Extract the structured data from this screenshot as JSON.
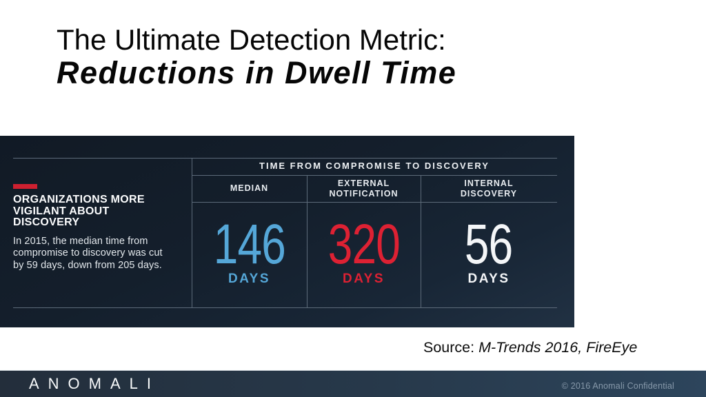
{
  "slide": {
    "title_line1": "The Ultimate Detection Metric:",
    "title_line2": "Reductions in Dwell Time",
    "source_prefix": "Source: ",
    "source_citation": "M-Trends 2016, FireEye"
  },
  "infographic": {
    "left_panel": {
      "heading_lines": [
        "ORGANIZATIONS MORE",
        "VIGILANT ABOUT",
        "DISCOVERY"
      ],
      "body_lines": [
        "In 2015, the median time from",
        "compromise to discovery was cut",
        "by 59 days, down from 205 days."
      ]
    },
    "table": {
      "title": "TIME FROM COMPROMISE TO DISCOVERY",
      "columns": [
        {
          "header_lines": [
            "MEDIAN"
          ],
          "value": "146",
          "unit": "DAYS",
          "color": "#55a7d8"
        },
        {
          "header_lines": [
            "EXTERNAL",
            "NOTIFICATION"
          ],
          "value": "320",
          "unit": "DAYS",
          "color": "#dd2133"
        },
        {
          "header_lines": [
            "INTERNAL",
            "DISCOVERY"
          ],
          "value": "56",
          "unit": "DAYS",
          "color": "#f4f6f8"
        }
      ]
    }
  },
  "chart_data": {
    "type": "table",
    "title": "TIME FROM COMPROMISE TO DISCOVERY",
    "categories": [
      "MEDIAN",
      "EXTERNAL NOTIFICATION",
      "INTERNAL DISCOVERY"
    ],
    "values": [
      146,
      320,
      56
    ],
    "unit": "DAYS",
    "note": "In 2015, the median time from compromise to discovery was cut by 59 days, down from 205 days."
  },
  "footer": {
    "logo": "ANOMALI",
    "copyright": "© 2016 Anomali Confidential"
  },
  "colors": {
    "accent_red": "#ce2030",
    "stat_blue": "#55a7d8",
    "stat_red": "#dd2133",
    "stat_white": "#f4f6f8",
    "panel_bg": "#141f2c",
    "footer_bg": "#27394b"
  }
}
